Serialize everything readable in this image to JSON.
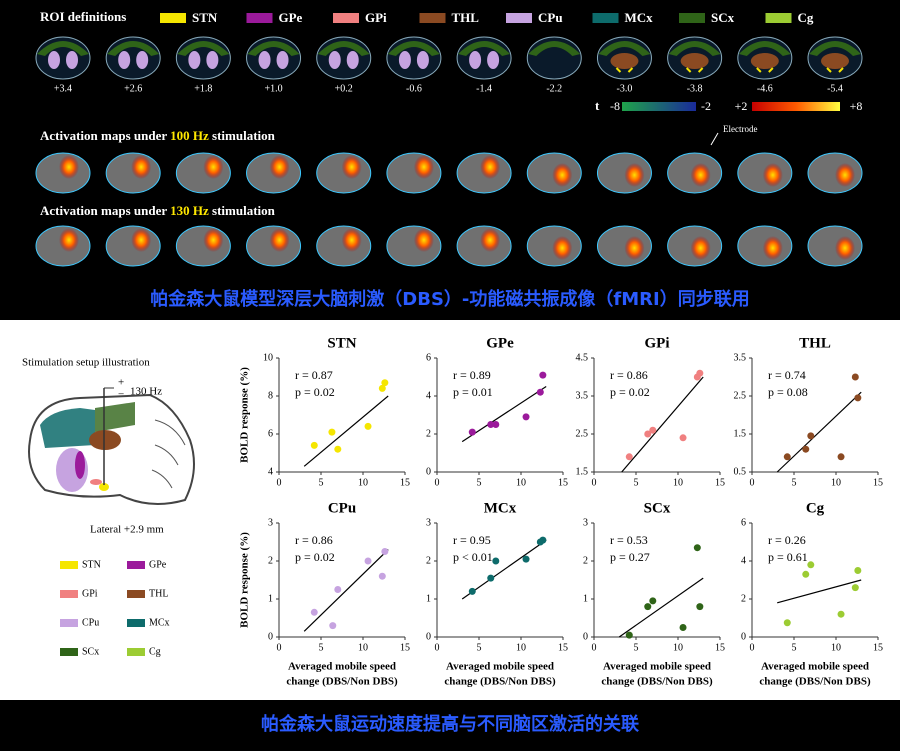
{
  "top_panel": {
    "roi_title": "ROI definitions",
    "regions": [
      {
        "name": "STN",
        "color": "#f5e600"
      },
      {
        "name": "GPe",
        "color": "#9b1a9b"
      },
      {
        "name": "GPi",
        "color": "#f08080"
      },
      {
        "name": "THL",
        "color": "#8b4a22"
      },
      {
        "name": "CPu",
        "color": "#c6a3e0"
      },
      {
        "name": "MCx",
        "color": "#0d6b6b"
      },
      {
        "name": "SCx",
        "color": "#2f6418"
      },
      {
        "name": "Cg",
        "color": "#9ccc33"
      }
    ],
    "slice_labels": [
      "+3.4",
      "+2.6",
      "+1.8",
      "+1.0",
      "+0.2",
      "-0.6",
      "-1.4",
      "-2.2",
      "-3.0",
      "-3.8",
      "-4.6",
      "-5.4"
    ],
    "colorbar": {
      "label": "t",
      "ticks": [
        "-8",
        "-2",
        "+2",
        "+8"
      ]
    },
    "electrode_label": "Electrode",
    "activation_rows": [
      {
        "prefix": "Activation maps under ",
        "frequency": "100 Hz",
        "suffix": " stimulation"
      },
      {
        "prefix": "Activation maps under ",
        "frequency": "130 Hz",
        "suffix": " stimulation"
      }
    ],
    "banner": "帕金森大鼠模型深层大脑刺激（DBS）-功能磁共振成像（fMRI）同步联用"
  },
  "illustration": {
    "title": "Stimulation setup illustration",
    "plus": "+",
    "minus": "−",
    "frequency": "130 Hz",
    "lateral": "Lateral +2.9 mm"
  },
  "bottom_banner": "帕金森大鼠运动速度提高与不同脑区激活的关联",
  "chart_data": [
    {
      "type": "scatter",
      "title": "STN",
      "color": "#f5e600",
      "annotations": [
        "r = 0.87",
        "p = 0.02"
      ],
      "x": [
        4.2,
        6.3,
        7.0,
        10.6,
        12.3,
        12.6
      ],
      "values": [
        5.4,
        6.1,
        5.2,
        6.4,
        8.4,
        8.7
      ],
      "trendline": {
        "x": [
          3,
          13
        ],
        "y": [
          4.3,
          8.0
        ]
      },
      "xlim": [
        0,
        15
      ],
      "xticks": [
        0,
        5,
        10,
        15
      ],
      "ylim": [
        4,
        10
      ],
      "yticks": [
        4,
        6,
        8,
        10
      ],
      "ylabel": "BOLD response (%)"
    },
    {
      "type": "scatter",
      "title": "GPe",
      "color": "#9b1a9b",
      "annotations": [
        "r = 0.89",
        "p = 0.01"
      ],
      "x": [
        4.2,
        6.4,
        7.0,
        10.6,
        12.3,
        12.6
      ],
      "values": [
        2.1,
        2.5,
        2.5,
        2.9,
        4.2,
        5.1
      ],
      "trendline": {
        "x": [
          3,
          13
        ],
        "y": [
          1.6,
          4.5
        ]
      },
      "xlim": [
        0,
        15
      ],
      "xticks": [
        0,
        5,
        10,
        15
      ],
      "ylim": [
        0,
        6
      ],
      "yticks": [
        0,
        2,
        4,
        6
      ]
    },
    {
      "type": "scatter",
      "title": "GPi",
      "color": "#f08080",
      "annotations": [
        "r = 0.86",
        "p = 0.02"
      ],
      "x": [
        4.2,
        6.4,
        7.0,
        10.6,
        12.3,
        12.6
      ],
      "values": [
        1.9,
        2.5,
        2.6,
        2.4,
        4.0,
        4.1
      ],
      "trendline": {
        "x": [
          3.3,
          13
        ],
        "y": [
          1.5,
          4.0
        ]
      },
      "xlim": [
        0,
        15
      ],
      "xticks": [
        0,
        5,
        10,
        15
      ],
      "ylim": [
        1.5,
        4.5
      ],
      "yticks": [
        1.5,
        2.5,
        3.5,
        4.5
      ]
    },
    {
      "type": "scatter",
      "title": "THL",
      "color": "#8b4a22",
      "annotations": [
        "r = 0.74",
        "p = 0.08"
      ],
      "x": [
        4.2,
        6.4,
        7.0,
        10.6,
        12.3,
        12.6
      ],
      "values": [
        0.9,
        1.1,
        1.45,
        0.9,
        3.0,
        2.45
      ],
      "trendline": {
        "x": [
          3,
          13
        ],
        "y": [
          0.5,
          2.6
        ]
      },
      "xlim": [
        0,
        15
      ],
      "xticks": [
        0,
        5,
        10,
        15
      ],
      "ylim": [
        0.5,
        3.5
      ],
      "yticks": [
        0.5,
        1.5,
        2.5,
        3.5
      ]
    },
    {
      "type": "scatter",
      "title": "CPu",
      "color": "#c6a3e0",
      "annotations": [
        "r = 0.86",
        "p = 0.02"
      ],
      "x": [
        4.2,
        6.4,
        7.0,
        10.6,
        12.3,
        12.6
      ],
      "values": [
        0.65,
        0.3,
        1.25,
        2.0,
        1.6,
        2.25
      ],
      "trendline": {
        "x": [
          3,
          13
        ],
        "y": [
          0.15,
          2.3
        ]
      },
      "xlim": [
        0,
        15
      ],
      "xticks": [
        0,
        5,
        10,
        15
      ],
      "ylim": [
        0,
        3
      ],
      "yticks": [
        0,
        1,
        2,
        3
      ],
      "ylabel": "BOLD response (%)",
      "xlabel": [
        "Averaged mobile speed",
        "change (DBS/Non DBS)"
      ]
    },
    {
      "type": "scatter",
      "title": "MCx",
      "color": "#0d6b6b",
      "annotations": [
        "r = 0.95",
        "p < 0.01"
      ],
      "x": [
        4.2,
        6.4,
        7.0,
        10.6,
        12.3,
        12.6
      ],
      "values": [
        1.2,
        1.55,
        2.0,
        2.05,
        2.5,
        2.55
      ],
      "trendline": {
        "x": [
          3,
          13
        ],
        "y": [
          1.0,
          2.55
        ]
      },
      "xlim": [
        0,
        15
      ],
      "xticks": [
        0,
        5,
        10,
        15
      ],
      "ylim": [
        0,
        3
      ],
      "yticks": [
        0,
        1,
        2,
        3
      ],
      "xlabel": [
        "Averaged mobile speed",
        "change (DBS/Non DBS)"
      ]
    },
    {
      "type": "scatter",
      "title": "SCx",
      "color": "#2f6418",
      "annotations": [
        "r = 0.53",
        "p = 0.27"
      ],
      "x": [
        4.2,
        6.4,
        7.0,
        10.6,
        12.3,
        12.6
      ],
      "values": [
        0.05,
        0.8,
        0.95,
        0.25,
        2.35,
        0.8
      ],
      "trendline": {
        "x": [
          3,
          13
        ],
        "y": [
          0,
          1.55
        ]
      },
      "xlim": [
        0,
        15
      ],
      "xticks": [
        0,
        5,
        10,
        15
      ],
      "ylim": [
        0,
        3
      ],
      "yticks": [
        0,
        1,
        2,
        3
      ],
      "xlabel": [
        "Averaged mobile speed",
        "change (DBS/Non DBS)"
      ]
    },
    {
      "type": "scatter",
      "title": "Cg",
      "color": "#9ccc33",
      "annotations": [
        "r = 0.26",
        "p = 0.61"
      ],
      "x": [
        4.2,
        6.4,
        7.0,
        10.6,
        12.3,
        12.6
      ],
      "values": [
        0.75,
        3.3,
        3.8,
        1.2,
        2.6,
        3.5
      ],
      "trendline": {
        "x": [
          3,
          13
        ],
        "y": [
          1.8,
          3.0
        ]
      },
      "xlim": [
        0,
        15
      ],
      "xticks": [
        0,
        5,
        10,
        15
      ],
      "ylim": [
        0,
        6
      ],
      "yticks": [
        0,
        2,
        4,
        6
      ],
      "xlabel": [
        "Averaged mobile speed",
        "change (DBS/Non DBS)"
      ]
    }
  ]
}
